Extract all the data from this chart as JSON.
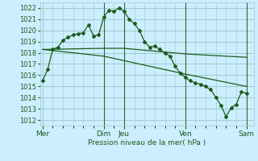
{
  "xlabel": "Pression niveau de la mer( hPa )",
  "ylim": [
    1011.5,
    1022.5
  ],
  "yticks": [
    1012,
    1013,
    1014,
    1015,
    1016,
    1017,
    1018,
    1019,
    1020,
    1021,
    1022
  ],
  "bg_color": "#cceeff",
  "grid_color": "#99cccc",
  "line_color": "#1a5c1a",
  "vline_color": "#336633",
  "day_names": [
    "Mer",
    "Dim",
    "Jeu",
    "Ven",
    "Sam"
  ],
  "day_positions": [
    0,
    12,
    16,
    28,
    40
  ],
  "vline_positions": [
    12,
    16,
    28,
    40
  ],
  "series1_x": [
    0,
    1,
    2,
    3,
    4,
    5,
    6,
    7,
    8,
    9,
    10,
    11,
    12,
    13,
    14,
    15,
    16,
    17,
    18,
    19,
    20,
    21,
    22,
    23,
    24,
    25,
    26,
    27,
    28,
    29,
    30,
    31,
    32,
    33,
    34,
    35,
    36,
    37,
    38,
    39,
    40
  ],
  "series1_y": [
    1015.5,
    1016.5,
    1018.3,
    1018.5,
    1019.1,
    1019.4,
    1019.6,
    1019.7,
    1019.8,
    1020.5,
    1019.5,
    1019.6,
    1021.2,
    1021.8,
    1021.7,
    1022.0,
    1021.7,
    1021.0,
    1020.6,
    1020.0,
    1019.0,
    1018.5,
    1018.6,
    1018.3,
    1018.0,
    1017.7,
    1016.8,
    1016.2,
    1015.8,
    1015.5,
    1015.3,
    1015.2,
    1015.0,
    1014.7,
    1014.0,
    1013.3,
    1012.3,
    1013.1,
    1013.4,
    1014.5,
    1014.4
  ],
  "series2_x": [
    0,
    12,
    16,
    28,
    40
  ],
  "series2_y": [
    1018.3,
    1018.4,
    1018.4,
    1017.9,
    1017.6
  ],
  "series3_x": [
    0,
    12,
    16,
    28,
    40
  ],
  "series3_y": [
    1018.3,
    1017.7,
    1017.3,
    1016.1,
    1015.0
  ],
  "xlim": [
    -0.5,
    41.5
  ]
}
